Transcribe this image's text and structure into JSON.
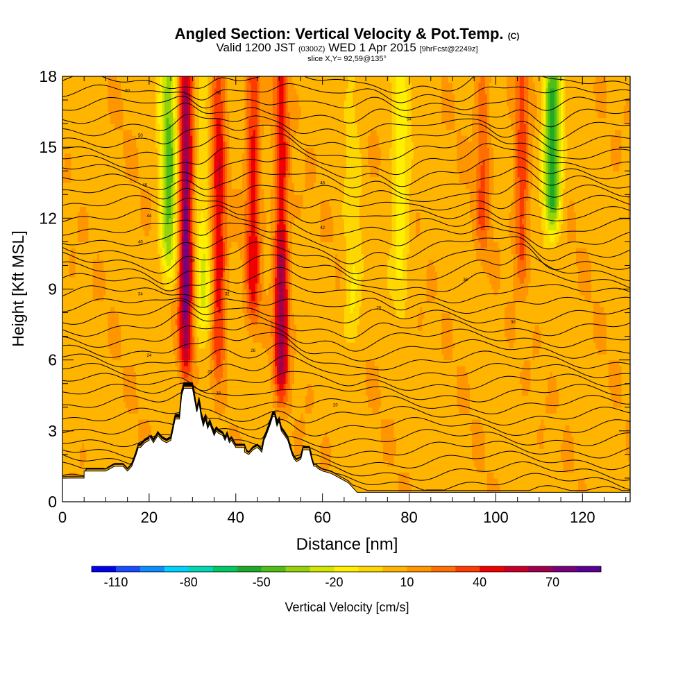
{
  "header": {
    "title": "Angled Section: Vertical Velocity & Pot.Temp.",
    "title_units": "(C)",
    "valid_prefix": "Valid 1200 JST",
    "valid_zulu": "(0300Z)",
    "valid_date": "WED 1 Apr 2015",
    "forecast": "[9hrFcst@2249z]",
    "slice": "slice X,Y= 92,59@135°"
  },
  "chart_data": {
    "type": "heatmap",
    "xlabel": "Distance [nm]",
    "ylabel": "Height [Kft MSL]",
    "xlim": [
      0,
      131
    ],
    "ylim": [
      0,
      18
    ],
    "x_ticks": [
      0,
      20,
      40,
      60,
      80,
      100,
      120
    ],
    "y_ticks": [
      0,
      3,
      6,
      9,
      12,
      15,
      18
    ],
    "colorbar": {
      "label": "Vertical Velocity [cm/s]",
      "min": -120,
      "max": 90,
      "step": 10,
      "tick_labels": [
        "-110",
        "-80",
        "-50",
        "-20",
        "10",
        "40",
        "70"
      ],
      "colors": [
        "#0000ee",
        "#1a4cff",
        "#0b8cff",
        "#00d2ff",
        "#00d8b4",
        "#00c864",
        "#1eaa28",
        "#50be14",
        "#96d20a",
        "#d2e600",
        "#fff000",
        "#ffd700",
        "#ffb400",
        "#ff9600",
        "#ff6e00",
        "#ff3c00",
        "#f00000",
        "#c80028",
        "#a0004b",
        "#78007d",
        "#5a0096"
      ]
    },
    "vertical_velocity_features": [
      {
        "x": 28.5,
        "z_base": 5,
        "z_top": 18,
        "peak": 78,
        "kind": "updraft"
      },
      {
        "x": 24.5,
        "z_base": 9,
        "z_top": 18,
        "peak": -45,
        "kind": "downdraft"
      },
      {
        "x": 36,
        "z_base": 5,
        "z_top": 18,
        "peak": 50,
        "kind": "updraft"
      },
      {
        "x": 44,
        "z_base": 7,
        "z_top": 18,
        "peak": 48,
        "kind": "updraft"
      },
      {
        "x": 50.5,
        "z_base": 4,
        "z_top": 12,
        "peak": 70,
        "kind": "updraft"
      },
      {
        "x": 78,
        "z_base": 8,
        "z_top": 18,
        "peak": -18,
        "kind": "downdraft"
      },
      {
        "x": 97,
        "z_base": 10,
        "z_top": 18,
        "peak": 32,
        "kind": "updraft"
      },
      {
        "x": 106,
        "z_base": 9,
        "z_top": 18,
        "peak": 38,
        "kind": "updraft"
      },
      {
        "x": 113,
        "z_base": 11,
        "z_top": 18,
        "peak": -62,
        "kind": "downdraft"
      },
      {
        "x": 32.5,
        "z_base": 6,
        "z_top": 11,
        "peak": -22,
        "kind": "downdraft"
      },
      {
        "x": 67,
        "z_base": 6,
        "z_top": 10,
        "peak": -14,
        "kind": "downdraft"
      }
    ],
    "terrain": {
      "x": [
        0,
        5,
        5,
        6,
        10,
        12,
        14,
        15,
        16,
        17,
        17.5,
        18,
        19,
        20,
        20,
        21,
        22,
        23,
        24,
        25,
        26,
        27,
        27.5,
        28,
        28.5,
        30,
        31,
        31.5,
        32,
        32.5,
        33,
        33.5,
        34,
        35,
        35.5,
        36,
        37,
        37.5,
        38,
        38.5,
        39,
        40,
        42,
        42,
        43,
        44,
        45,
        46,
        46.5,
        47,
        48,
        48.5,
        49,
        49.5,
        50,
        50.5,
        52,
        52.5,
        53,
        53.5,
        54,
        55,
        55.5,
        57,
        57.5,
        58,
        58.5,
        59,
        60,
        62,
        64,
        66,
        67,
        68,
        71,
        72,
        75,
        131
      ],
      "z": [
        1,
        1,
        1.3,
        1.3,
        1.3,
        1.5,
        1.5,
        1.3,
        1.5,
        2,
        2.3,
        2.3,
        2.5,
        2.6,
        2.8,
        2.5,
        2.8,
        2.6,
        2.5,
        2.6,
        3.5,
        3.5,
        4.5,
        4.8,
        4.8,
        4.8,
        3.8,
        4.2,
        3.6,
        3.2,
        3.5,
        3.1,
        3.3,
        2.8,
        3,
        2.9,
        2.8,
        2.6,
        2.8,
        2.5,
        2.6,
        2.3,
        2.3,
        2.1,
        2,
        2.2,
        2.3,
        2.1,
        2.6,
        2.8,
        3.3,
        3.6,
        3.6,
        3.2,
        3.4,
        3,
        2.6,
        2.3,
        2,
        1.8,
        1.7,
        1.8,
        2.2,
        2.2,
        1.8,
        1.5,
        1.5,
        1.4,
        1.3,
        1.2,
        1,
        0.8,
        0.6,
        0.4,
        0.4,
        0.4,
        0.4,
        0.4
      ]
    },
    "potential_temperature": {
      "units": "C",
      "interval": 2,
      "surface_value": 12,
      "contour_labels": [
        "60",
        "56",
        "54",
        "50",
        "48",
        "46",
        "44",
        "42",
        "40",
        "38",
        "36",
        "34",
        "32",
        "30",
        "28",
        "26",
        "24",
        "22",
        "20",
        "18",
        "16"
      ]
    }
  }
}
